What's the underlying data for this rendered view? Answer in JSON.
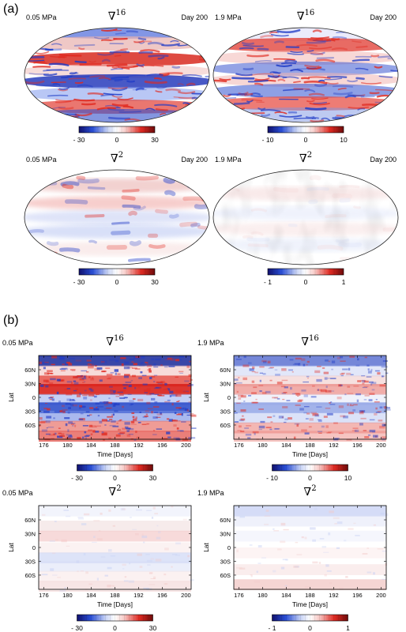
{
  "panel_labels": [
    "(a)",
    "(b)"
  ],
  "colorbar_colors": {
    "dark_blue": "#10106e",
    "blue": "#2a4fd6",
    "light_blue": "#c9d4f5",
    "white": "#ffffff",
    "light_red": "#f7c9c6",
    "red": "#e02a22",
    "dark_red": "#6e0b0b"
  },
  "maps": [
    {
      "pressure": "0.05 MPa",
      "operator": "∇",
      "power": "16",
      "day": "Day 200",
      "colorbar": {
        "min_label": "- 30",
        "mid_label": "0",
        "max_label": "30"
      },
      "intensity": "strong"
    },
    {
      "pressure": "1.9 MPa",
      "operator": "∇",
      "power": "16",
      "day": "Day 200",
      "colorbar": {
        "min_label": "- 10",
        "mid_label": "0",
        "max_label": "10"
      },
      "intensity": "strong"
    },
    {
      "pressure": "0.05 MPa",
      "operator": "∇",
      "power": "2",
      "day": "Day 200",
      "colorbar": {
        "min_label": "- 30",
        "mid_label": "0",
        "max_label": "30"
      },
      "intensity": "smooth"
    },
    {
      "pressure": "1.9 MPa",
      "operator": "∇",
      "power": "2",
      "day": "Day 200",
      "colorbar": {
        "min_label": "- 1",
        "mid_label": "0",
        "max_label": "1"
      },
      "intensity": "faint"
    }
  ],
  "hovmoller": [
    {
      "pressure": "0.05 MPa",
      "operator": "∇",
      "power": "16",
      "ylabel": "Lat",
      "xlabel": "Time [Days]",
      "yticks": [
        "60N",
        "30N",
        "0",
        "30S",
        "60S"
      ],
      "xticks": [
        "176",
        "180",
        "184",
        "188",
        "192",
        "196",
        "200"
      ],
      "colorbar": {
        "min_label": "- 30",
        "mid_label": "0",
        "max_label": "30"
      },
      "intensity": "strong"
    },
    {
      "pressure": "1.9 MPa",
      "operator": "∇",
      "power": "16",
      "ylabel": "Lat",
      "xlabel": "Time [Days]",
      "yticks": [
        "60N",
        "30N",
        "0",
        "30S",
        "60S"
      ],
      "xticks": [
        "176",
        "180",
        "184",
        "188",
        "192",
        "196",
        "200"
      ],
      "colorbar": {
        "min_label": "- 10",
        "mid_label": "0",
        "max_label": "10"
      },
      "intensity": "medium"
    },
    {
      "pressure": "0.05 MPa",
      "operator": "∇",
      "power": "2",
      "ylabel": "Lat",
      "xlabel": "Time [Days]",
      "yticks": [
        "60N",
        "30N",
        "0",
        "30S",
        "60S"
      ],
      "xticks": [
        "176",
        "180",
        "184",
        "188",
        "192",
        "196",
        "200"
      ],
      "colorbar": {
        "min_label": "- 30",
        "mid_label": "0",
        "max_label": "30"
      },
      "intensity": "smooth"
    },
    {
      "pressure": "1.9 MPa",
      "operator": "∇",
      "power": "2",
      "ylabel": "Lat",
      "xlabel": "Time [Days]",
      "yticks": [
        "60N",
        "30N",
        "0",
        "30S",
        "60S"
      ],
      "xticks": [
        "176",
        "180",
        "184",
        "188",
        "192",
        "196",
        "200"
      ],
      "colorbar": {
        "min_label": "- 1",
        "mid_label": "0",
        "max_label": "1"
      },
      "intensity": "faint"
    }
  ]
}
